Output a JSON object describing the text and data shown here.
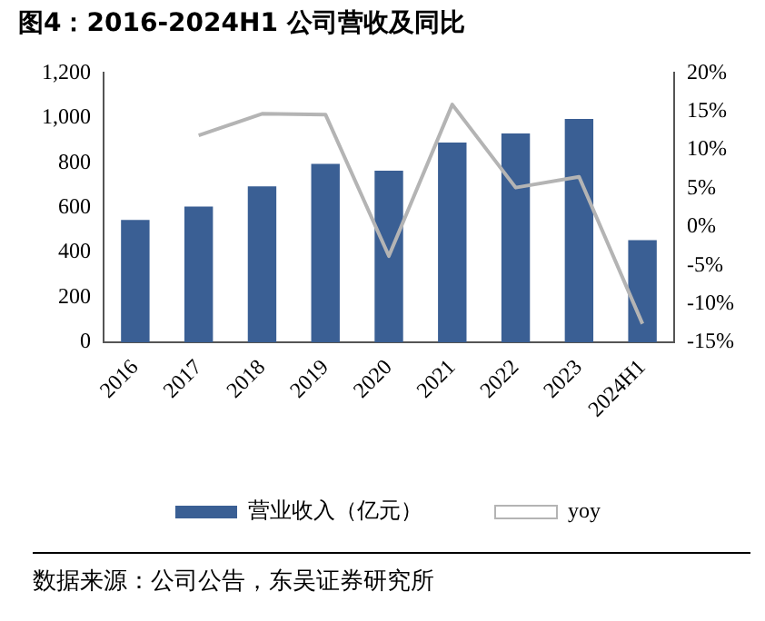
{
  "chart_data": {
    "type": "bar",
    "title": "图4：2016-2024H1 公司营收及同比",
    "categories": [
      "2016",
      "2017",
      "2018",
      "2019",
      "2020",
      "2021",
      "2022",
      "2023",
      "2024H1"
    ],
    "series": [
      {
        "name": "营业收入（亿元）",
        "color": "#3a5f94",
        "values": [
          545,
          605,
          695,
          795,
          765,
          890,
          930,
          995,
          455
        ]
      },
      {
        "name": "yoy",
        "type": "line",
        "axis": "y2",
        "color": "#b4b4b4",
        "values": [
          null,
          11.9,
          14.7,
          14.6,
          -3.8,
          15.9,
          5.1,
          6.5,
          -12.6
        ]
      }
    ],
    "ylim": [
      0,
      1200
    ],
    "yticks": [
      0,
      200,
      400,
      600,
      800,
      {
        "value": 1000,
        "label": "1,000"
      },
      {
        "value": 1200,
        "label": "1,200"
      }
    ],
    "y2lim": [
      -15,
      20
    ],
    "y2ticks": [
      {
        "value": -15,
        "label": "-15%"
      },
      {
        "value": -10,
        "label": "-10%"
      },
      {
        "value": -5,
        "label": "-5%"
      },
      {
        "value": 0,
        "label": "0%"
      },
      {
        "value": 5,
        "label": "5%"
      },
      {
        "value": 10,
        "label": "10%"
      },
      {
        "value": 15,
        "label": "15%"
      },
      {
        "value": 20,
        "label": "20%"
      }
    ],
    "grid": false,
    "legend": "bottom",
    "marker": "none",
    "annotations": [
      "数据来源：公司公告，东吴证券研究所"
    ]
  }
}
